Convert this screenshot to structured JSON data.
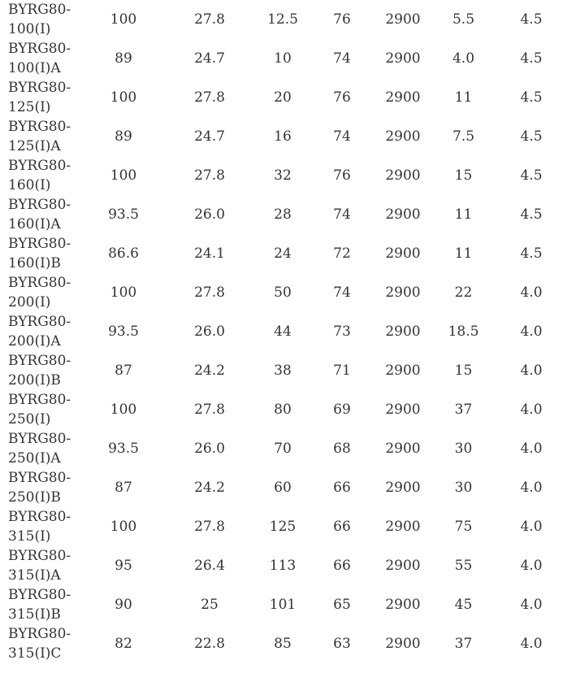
{
  "rows": [
    {
      "model_line1": "BYRG80-",
      "model_line2": "100(I)",
      "cols": [
        "100",
        "27.8",
        "12.5",
        "76",
        "2900",
        "5.5",
        "4.5"
      ]
    },
    {
      "model_line1": "BYRG80-",
      "model_line2": "100(I)A",
      "cols": [
        "89",
        "24.7",
        "10",
        "74",
        "2900",
        "4.0",
        "4.5"
      ]
    },
    {
      "model_line1": "BYRG80-",
      "model_line2": "125(I)",
      "cols": [
        "100",
        "27.8",
        "20",
        "76",
        "2900",
        "11",
        "4.5"
      ]
    },
    {
      "model_line1": "BYRG80-",
      "model_line2": "125(I)A",
      "cols": [
        "89",
        "24.7",
        "16",
        "74",
        "2900",
        "7.5",
        "4.5"
      ]
    },
    {
      "model_line1": "BYRG80-",
      "model_line2": "160(I)",
      "cols": [
        "100",
        "27.8",
        "32",
        "76",
        "2900",
        "15",
        "4.5"
      ]
    },
    {
      "model_line1": "BYRG80-",
      "model_line2": "160(I)A",
      "cols": [
        "93.5",
        "26.0",
        "28",
        "74",
        "2900",
        "11",
        "4.5"
      ]
    },
    {
      "model_line1": "BYRG80-",
      "model_line2": "160(I)B",
      "cols": [
        "86.6",
        "24.1",
        "24",
        "72",
        "2900",
        "11",
        "4.5"
      ]
    },
    {
      "model_line1": "BYRG80-",
      "model_line2": "200(I)",
      "cols": [
        "100",
        "27.8",
        "50",
        "74",
        "2900",
        "22",
        "4.0"
      ]
    },
    {
      "model_line1": "BYRG80-",
      "model_line2": "200(I)A",
      "cols": [
        "93.5",
        "26.0",
        "44",
        "73",
        "2900",
        "18.5",
        "4.0"
      ]
    },
    {
      "model_line1": "BYRG80-",
      "model_line2": "200(I)B",
      "cols": [
        "87",
        "24.2",
        "38",
        "71",
        "2900",
        "15",
        "4.0"
      ]
    },
    {
      "model_line1": "BYRG80-",
      "model_line2": "250(I)",
      "cols": [
        "100",
        "27.8",
        "80",
        "69",
        "2900",
        "37",
        "4.0"
      ]
    },
    {
      "model_line1": "BYRG80-",
      "model_line2": "250(I)A",
      "cols": [
        "93.5",
        "26.0",
        "70",
        "68",
        "2900",
        "30",
        "4.0"
      ]
    },
    {
      "model_line1": "BYRG80-",
      "model_line2": "250(I)B",
      "cols": [
        "87",
        "24.2",
        "60",
        "66",
        "2900",
        "30",
        "4.0"
      ]
    },
    {
      "model_line1": "BYRG80-",
      "model_line2": "315(I)",
      "cols": [
        "100",
        "27.8",
        "125",
        "66",
        "2900",
        "75",
        "4.0"
      ]
    },
    {
      "model_line1": "BYRG80-",
      "model_line2": "315(I)A",
      "cols": [
        "95",
        "26.4",
        "113",
        "66",
        "2900",
        "55",
        "4.0"
      ]
    },
    {
      "model_line1": "BYRG80-",
      "model_line2": "315(I)B",
      "cols": [
        "90",
        "25",
        "101",
        "65",
        "2900",
        "45",
        "4.0"
      ]
    },
    {
      "model_line1": "BYRG80-",
      "model_line2": "315(I)C",
      "cols": [
        "82",
        "22.8",
        "85",
        "63",
        "2900",
        "37",
        "4.0"
      ]
    }
  ]
}
